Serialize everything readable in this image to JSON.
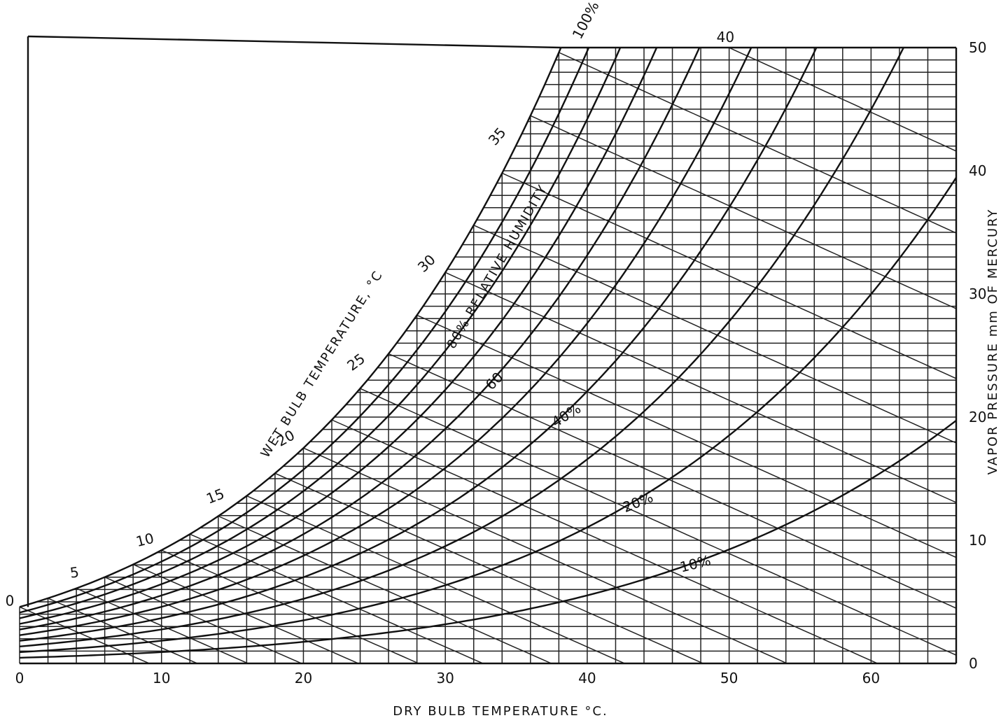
{
  "chart_data": {
    "type": "line",
    "title": "",
    "xlabel": "DRY BULB TEMPERATURE °C.",
    "ylabel": "VAPOR PRESSURE mm OF MERCURY",
    "xlim": [
      0,
      66
    ],
    "ylim": [
      0,
      50
    ],
    "x_ticks": [
      0,
      10,
      20,
      30,
      40,
      50,
      60
    ],
    "x_tick_labels": [
      "0",
      "10",
      "20",
      "30",
      "40",
      "50",
      "60"
    ],
    "y_ticks": [
      0,
      10,
      20,
      30,
      40,
      50
    ],
    "y_tick_labels": [
      "0",
      "10",
      "20",
      "30",
      "40",
      "50"
    ],
    "grid": true,
    "relative_humidity_curves": [
      {
        "rh": 100,
        "label": "100%"
      },
      {
        "rh": 90,
        "label": ""
      },
      {
        "rh": 80,
        "label": "80% RELATIVE HUMIDITY"
      },
      {
        "rh": 70,
        "label": ""
      },
      {
        "rh": 60,
        "label": "60"
      },
      {
        "rh": 50,
        "label": ""
      },
      {
        "rh": 40,
        "label": "40%"
      },
      {
        "rh": 30,
        "label": ""
      },
      {
        "rh": 20,
        "label": "20%"
      },
      {
        "rh": 10,
        "label": "10%"
      }
    ],
    "wet_bulb_lines": {
      "axis_label": "WET BULB TEMPERATURE, °C",
      "values": [
        0,
        2,
        4,
        6,
        8,
        10,
        12,
        14,
        16,
        18,
        20,
        22,
        24,
        26,
        28,
        30,
        32,
        34,
        36,
        38,
        40
      ],
      "labels": [
        {
          "t": 0,
          "text": "0"
        },
        {
          "t": 5,
          "text": "5"
        },
        {
          "t": 10,
          "text": "10"
        },
        {
          "t": 15,
          "text": "15"
        },
        {
          "t": 20,
          "text": "20"
        },
        {
          "t": 25,
          "text": "25"
        },
        {
          "t": 30,
          "text": "30"
        },
        {
          "t": 35,
          "text": "35"
        },
        {
          "t": 40,
          "text": "40"
        }
      ]
    }
  }
}
